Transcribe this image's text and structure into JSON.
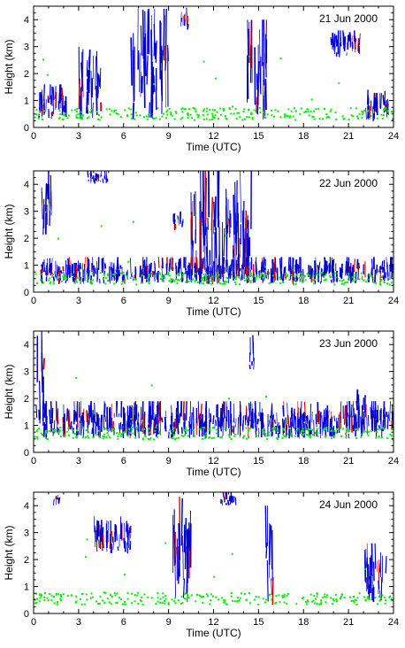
{
  "chart_data": [
    {
      "type": "scatter",
      "annotation": "21 Jun 2000",
      "xlabel": "Time (UTC)",
      "ylabel": "Height (km)",
      "xlim": [
        0,
        24
      ],
      "ylim": [
        0,
        4.5
      ],
      "x_ticks": [
        0,
        3,
        6,
        9,
        12,
        15,
        18,
        21,
        24
      ],
      "y_ticks": [
        0,
        1,
        2,
        3,
        4
      ],
      "colors": {
        "cloud": "#0000cc",
        "strong": "#dd0000",
        "boundary": "#00ee00"
      },
      "boundary_height_km": 0.5,
      "cloud_features": [
        {
          "start": 0.2,
          "end": 2.2,
          "bottom": 0.3,
          "top": 1.6
        },
        {
          "start": 3.0,
          "end": 4.5,
          "bottom": 0.3,
          "top": 3.0
        },
        {
          "start": 6.5,
          "end": 9.0,
          "bottom": 0.3,
          "top": 4.4
        },
        {
          "start": 9.8,
          "end": 10.3,
          "bottom": 3.6,
          "top": 4.5
        },
        {
          "start": 14.2,
          "end": 15.6,
          "bottom": 0.2,
          "top": 4.0
        },
        {
          "start": 19.8,
          "end": 21.8,
          "bottom": 2.6,
          "top": 3.6
        },
        {
          "start": 22.2,
          "end": 23.8,
          "bottom": 0.2,
          "top": 1.4
        }
      ]
    },
    {
      "type": "scatter",
      "annotation": "22 Jun 2000",
      "xlabel": "Time (UTC)",
      "ylabel": "Height (km)",
      "xlim": [
        0,
        24
      ],
      "ylim": [
        0,
        4.5
      ],
      "x_ticks": [
        0,
        3,
        6,
        9,
        12,
        15,
        18,
        21,
        24
      ],
      "y_ticks": [
        0,
        1,
        2,
        3,
        4
      ],
      "colors": {
        "cloud": "#0000cc",
        "strong": "#dd0000",
        "boundary": "#00ee00"
      },
      "boundary_height_km": 0.5,
      "cloud_features": [
        {
          "start": 0.5,
          "end": 1.2,
          "bottom": 2.0,
          "top": 4.5
        },
        {
          "start": 3.6,
          "end": 5.0,
          "bottom": 4.0,
          "top": 4.5
        },
        {
          "start": 9.3,
          "end": 10.0,
          "bottom": 2.3,
          "top": 3.0
        },
        {
          "start": 10.5,
          "end": 14.5,
          "bottom": 0.4,
          "top": 4.5
        },
        {
          "start": 0.5,
          "end": 24.0,
          "bottom": 0.3,
          "top": 1.3
        }
      ]
    },
    {
      "type": "scatter",
      "annotation": "23 Jun 2000",
      "xlabel": "Time (UTC)",
      "ylabel": "Height (km)",
      "xlim": [
        0,
        24
      ],
      "ylim": [
        0,
        4.5
      ],
      "x_ticks": [
        0,
        3,
        6,
        9,
        12,
        15,
        18,
        21,
        24
      ],
      "y_ticks": [
        0,
        1,
        2,
        3,
        4
      ],
      "colors": {
        "cloud": "#0000cc",
        "strong": "#dd0000",
        "boundary": "#00ee00"
      },
      "boundary_height_km": 0.7,
      "cloud_features": [
        {
          "start": 0.2,
          "end": 0.7,
          "bottom": 1.0,
          "top": 4.5
        },
        {
          "start": 14.4,
          "end": 14.7,
          "bottom": 3.0,
          "top": 4.4
        },
        {
          "start": 21.5,
          "end": 22.1,
          "bottom": 0.6,
          "top": 2.4
        },
        {
          "start": 0.5,
          "end": 24.0,
          "bottom": 0.5,
          "top": 1.9
        }
      ]
    },
    {
      "type": "scatter",
      "annotation": "24 Jun 2000",
      "xlabel": "Time (UTC)",
      "ylabel": "Height (km)",
      "xlim": [
        0,
        24
      ],
      "ylim": [
        0,
        4.5
      ],
      "x_ticks": [
        0,
        3,
        6,
        9,
        12,
        15,
        18,
        21,
        24
      ],
      "y_ticks": [
        0,
        1,
        2,
        3,
        4
      ],
      "colors": {
        "cloud": "#0000cc",
        "strong": "#dd0000",
        "boundary": "#00ee00"
      },
      "boundary_height_km": 0.55,
      "cloud_features": [
        {
          "start": 1.3,
          "end": 1.7,
          "bottom": 4.0,
          "top": 4.4
        },
        {
          "start": 4.0,
          "end": 6.5,
          "bottom": 2.2,
          "top": 3.6
        },
        {
          "start": 9.2,
          "end": 10.5,
          "bottom": 0.3,
          "top": 4.5
        },
        {
          "start": 12.5,
          "end": 13.5,
          "bottom": 4.0,
          "top": 4.5
        },
        {
          "start": 15.5,
          "end": 16.0,
          "bottom": 0.3,
          "top": 4.0
        },
        {
          "start": 22.0,
          "end": 23.5,
          "bottom": 0.4,
          "top": 2.6
        }
      ]
    }
  ]
}
